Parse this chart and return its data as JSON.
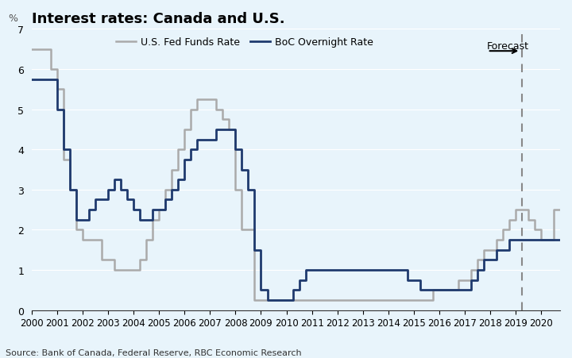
{
  "title": "Interest rates: Canada and U.S.",
  "ylabel": "%",
  "source": "Source: Bank of Canada, Federal Reserve, RBC Economic Research",
  "plot_bg_color": "#e8f4fb",
  "fig_bg_color": "#e8f4fb",
  "ylim": [
    0,
    7
  ],
  "yticks": [
    0,
    1,
    2,
    3,
    4,
    5,
    6,
    7
  ],
  "xlim": [
    2000,
    2020.75
  ],
  "forecast_x": 2019.25,
  "dashed_line_color": "#888888",
  "fed_color": "#aaaaaa",
  "boc_color": "#1f3a6e",
  "fed_label": "U.S. Fed Funds Rate",
  "boc_label": "BoC Overnight Rate",
  "fed_data": [
    [
      2000.0,
      6.5
    ],
    [
      2000.5,
      6.5
    ],
    [
      2000.75,
      6.0
    ],
    [
      2001.0,
      5.5
    ],
    [
      2001.25,
      3.75
    ],
    [
      2001.5,
      3.0
    ],
    [
      2001.75,
      2.0
    ],
    [
      2002.0,
      1.75
    ],
    [
      2002.5,
      1.75
    ],
    [
      2002.75,
      1.25
    ],
    [
      2003.0,
      1.25
    ],
    [
      2003.25,
      1.0
    ],
    [
      2003.75,
      1.0
    ],
    [
      2004.0,
      1.0
    ],
    [
      2004.25,
      1.25
    ],
    [
      2004.5,
      1.75
    ],
    [
      2004.75,
      2.25
    ],
    [
      2005.0,
      2.5
    ],
    [
      2005.25,
      3.0
    ],
    [
      2005.5,
      3.5
    ],
    [
      2005.75,
      4.0
    ],
    [
      2006.0,
      4.5
    ],
    [
      2006.25,
      5.0
    ],
    [
      2006.5,
      5.25
    ],
    [
      2006.75,
      5.25
    ],
    [
      2007.0,
      5.25
    ],
    [
      2007.25,
      5.0
    ],
    [
      2007.5,
      4.75
    ],
    [
      2007.75,
      4.5
    ],
    [
      2008.0,
      3.0
    ],
    [
      2008.25,
      2.0
    ],
    [
      2008.5,
      2.0
    ],
    [
      2008.75,
      0.25
    ],
    [
      2009.0,
      0.25
    ],
    [
      2015.75,
      0.25
    ],
    [
      2015.75,
      0.5
    ],
    [
      2016.5,
      0.5
    ],
    [
      2016.75,
      0.75
    ],
    [
      2017.0,
      0.75
    ],
    [
      2017.25,
      1.0
    ],
    [
      2017.5,
      1.25
    ],
    [
      2017.75,
      1.5
    ],
    [
      2018.0,
      1.5
    ],
    [
      2018.25,
      1.75
    ],
    [
      2018.5,
      2.0
    ],
    [
      2018.75,
      2.25
    ],
    [
      2019.0,
      2.5
    ],
    [
      2019.25,
      2.5
    ],
    [
      2019.5,
      2.25
    ],
    [
      2019.75,
      2.0
    ],
    [
      2020.0,
      1.75
    ],
    [
      2020.5,
      2.5
    ],
    [
      2020.75,
      2.5
    ]
  ],
  "boc_data": [
    [
      2000.0,
      5.75
    ],
    [
      2000.75,
      5.75
    ],
    [
      2001.0,
      5.0
    ],
    [
      2001.25,
      4.0
    ],
    [
      2001.5,
      3.0
    ],
    [
      2001.75,
      2.25
    ],
    [
      2002.0,
      2.25
    ],
    [
      2002.25,
      2.5
    ],
    [
      2002.5,
      2.75
    ],
    [
      2002.75,
      2.75
    ],
    [
      2003.0,
      3.0
    ],
    [
      2003.25,
      3.25
    ],
    [
      2003.5,
      3.0
    ],
    [
      2003.75,
      2.75
    ],
    [
      2004.0,
      2.5
    ],
    [
      2004.25,
      2.25
    ],
    [
      2004.5,
      2.25
    ],
    [
      2004.75,
      2.5
    ],
    [
      2005.0,
      2.5
    ],
    [
      2005.25,
      2.75
    ],
    [
      2005.5,
      3.0
    ],
    [
      2005.75,
      3.25
    ],
    [
      2006.0,
      3.75
    ],
    [
      2006.25,
      4.0
    ],
    [
      2006.5,
      4.25
    ],
    [
      2006.75,
      4.25
    ],
    [
      2007.0,
      4.25
    ],
    [
      2007.25,
      4.5
    ],
    [
      2007.5,
      4.5
    ],
    [
      2007.75,
      4.5
    ],
    [
      2008.0,
      4.0
    ],
    [
      2008.25,
      3.5
    ],
    [
      2008.5,
      3.0
    ],
    [
      2008.75,
      1.5
    ],
    [
      2009.0,
      0.5
    ],
    [
      2009.25,
      0.25
    ],
    [
      2009.5,
      0.25
    ],
    [
      2010.0,
      0.25
    ],
    [
      2010.25,
      0.5
    ],
    [
      2010.5,
      0.75
    ],
    [
      2010.75,
      1.0
    ],
    [
      2011.0,
      1.0
    ],
    [
      2014.75,
      1.0
    ],
    [
      2014.75,
      0.75
    ],
    [
      2015.0,
      0.75
    ],
    [
      2015.25,
      0.5
    ],
    [
      2015.5,
      0.5
    ],
    [
      2017.0,
      0.5
    ],
    [
      2017.25,
      0.75
    ],
    [
      2017.5,
      1.0
    ],
    [
      2017.75,
      1.25
    ],
    [
      2018.0,
      1.25
    ],
    [
      2018.25,
      1.5
    ],
    [
      2018.5,
      1.5
    ],
    [
      2018.75,
      1.75
    ],
    [
      2019.0,
      1.75
    ],
    [
      2020.75,
      1.75
    ]
  ]
}
